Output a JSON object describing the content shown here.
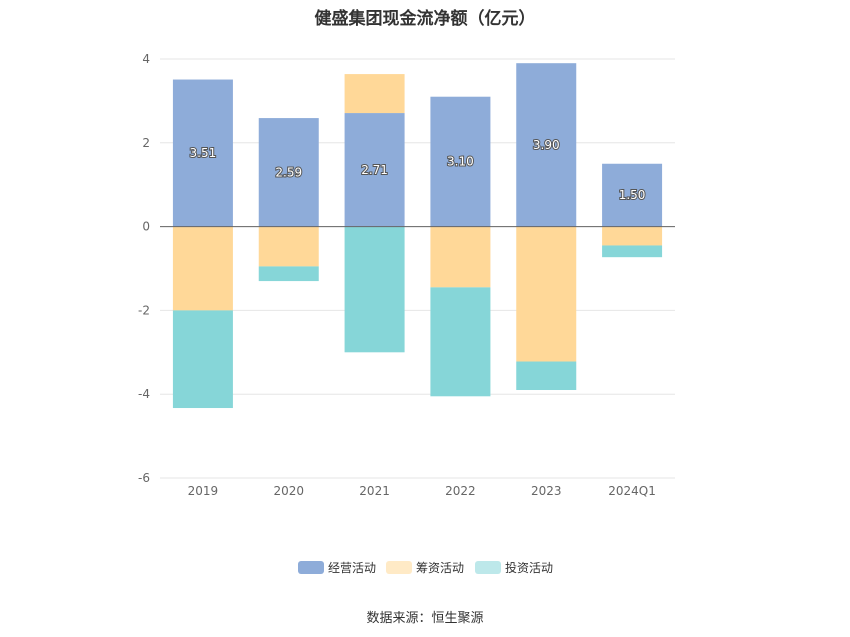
{
  "chart_data": {
    "type": "bar",
    "stacked": true,
    "title": "健盛集团现金流净额（亿元）",
    "categories": [
      "2019",
      "2020",
      "2021",
      "2022",
      "2023",
      "2024Q1"
    ],
    "ylim": [
      -6,
      4
    ],
    "yticks": [
      4,
      2,
      0,
      -2,
      -4,
      -6
    ],
    "grid": true,
    "legend_position": "bottom",
    "series": [
      {
        "name": "经营活动",
        "color": "#8eacd9",
        "values": [
          3.51,
          2.59,
          2.71,
          3.1,
          3.9,
          1.5
        ],
        "labels": [
          "3.51",
          "2.59",
          "2.71",
          "3.10",
          "3.90",
          "1.50"
        ]
      },
      {
        "name": "筹资活动",
        "color": "#ffd898",
        "values": [
          -2.0,
          -0.95,
          0.93,
          -1.45,
          -3.22,
          -0.45
        ]
      },
      {
        "name": "投资活动",
        "color": "#86d6d8",
        "values": [
          -2.33,
          -0.35,
          -3.0,
          -2.6,
          -0.68,
          -0.28
        ]
      }
    ]
  },
  "footer": {
    "source": "数据来源：恒生聚源"
  }
}
